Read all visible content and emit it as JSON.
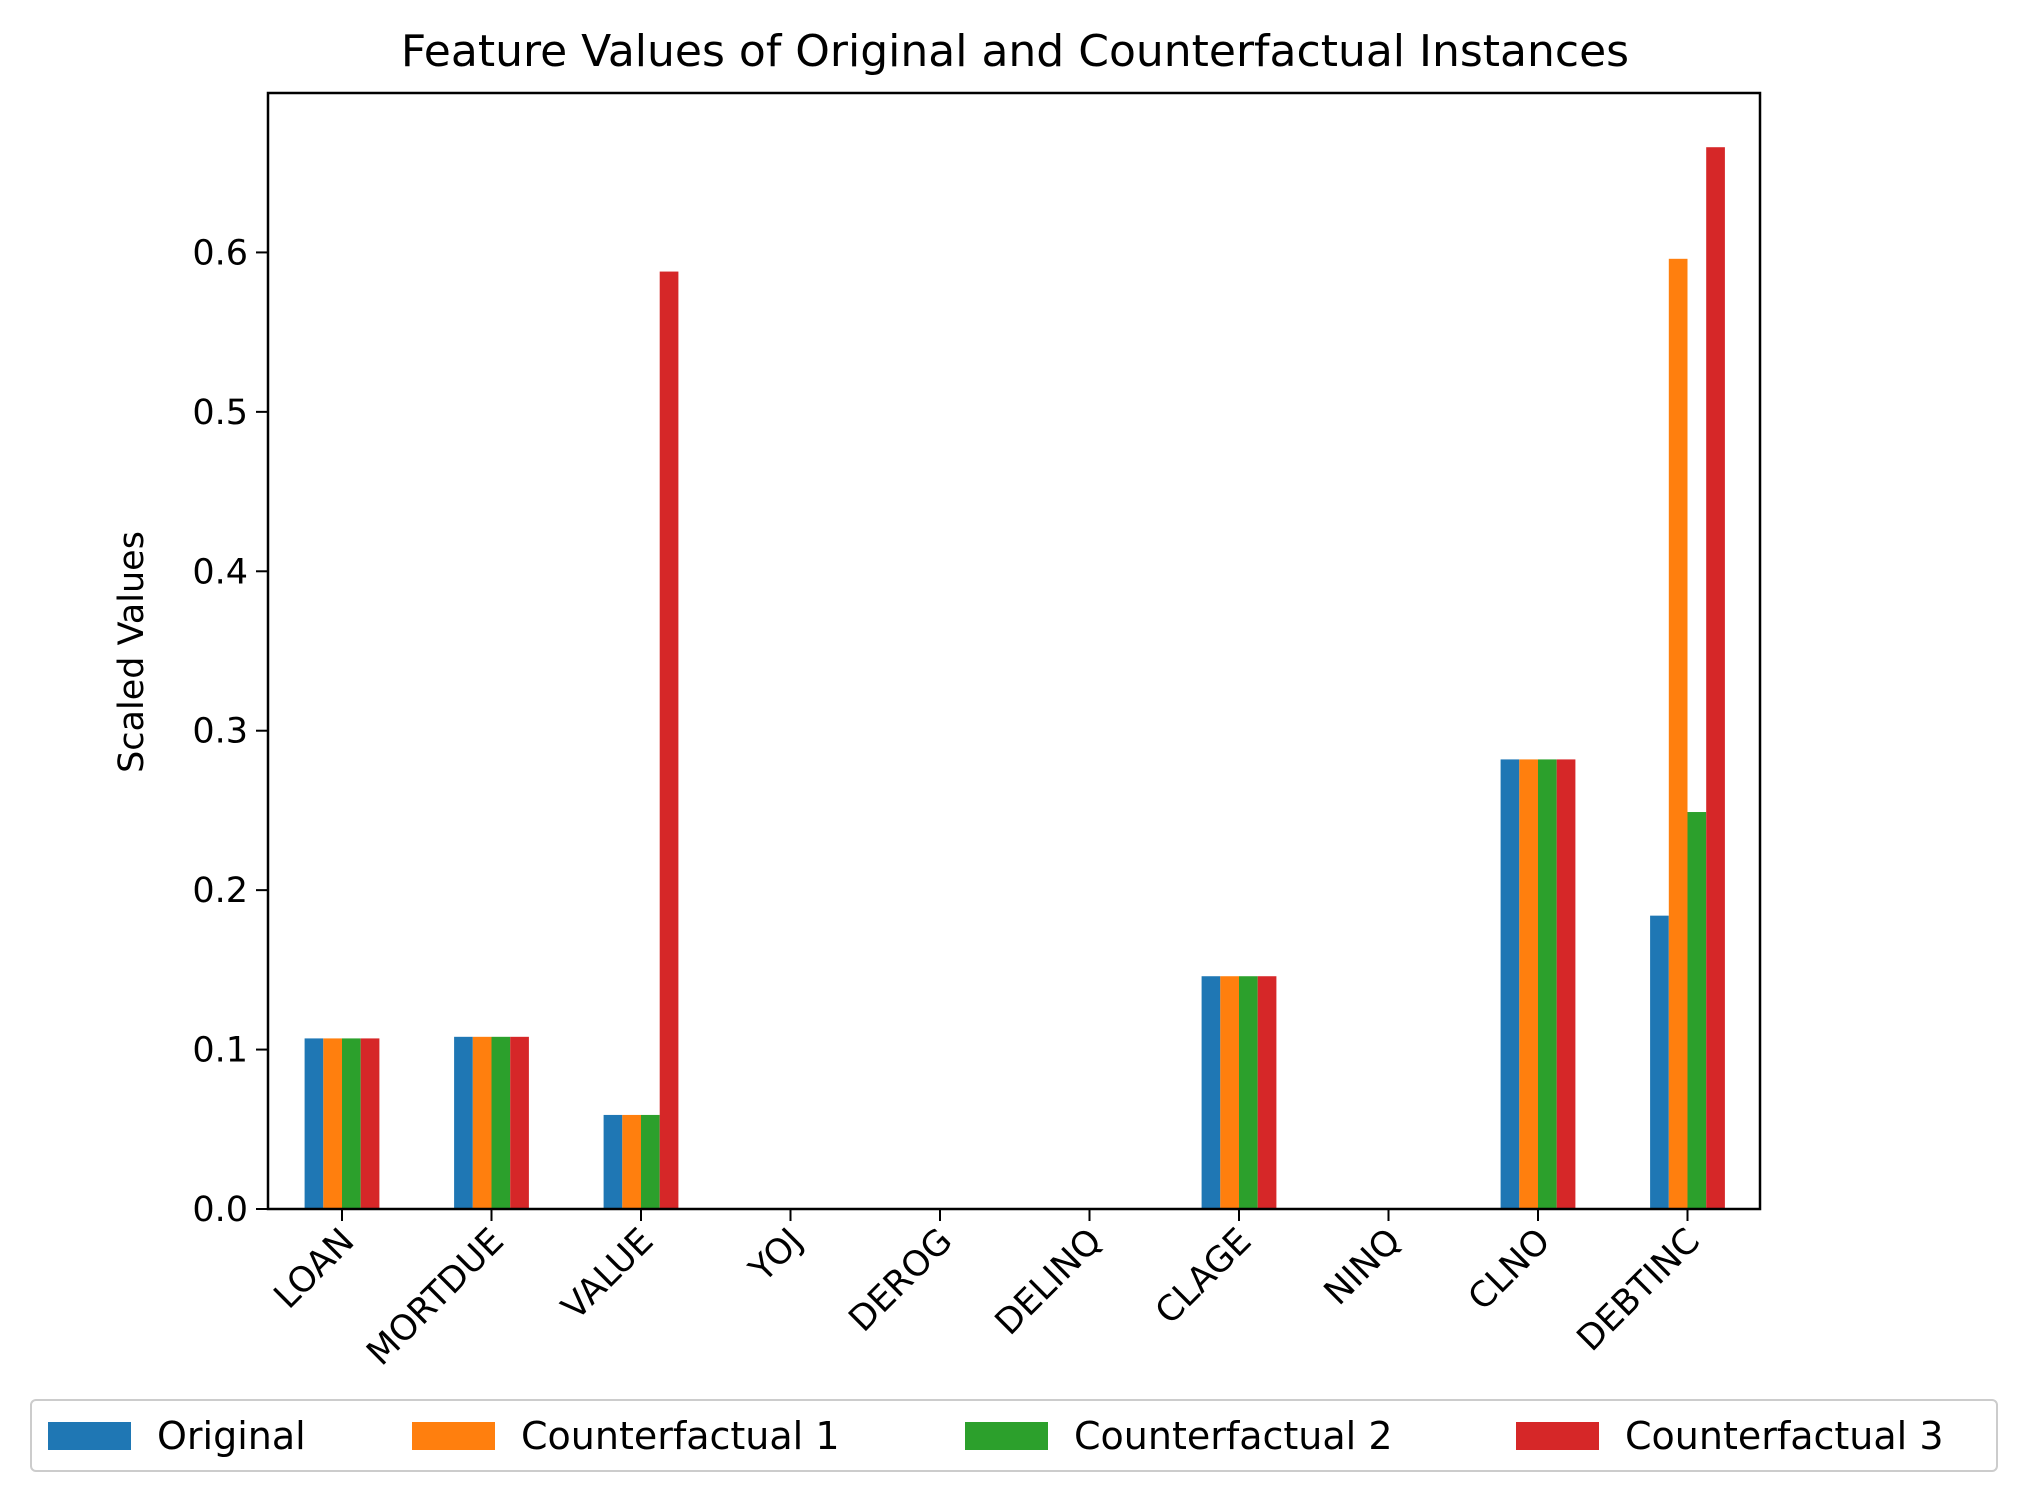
{
  "chart_data": {
    "type": "bar",
    "title": "Feature Values of Original and Counterfactual Instances",
    "xlabel": "",
    "ylabel": "Scaled Values",
    "ylim": [
      0,
      0.7
    ],
    "yticks": [
      "0.0",
      "0.1",
      "0.2",
      "0.3",
      "0.4",
      "0.5",
      "0.6"
    ],
    "grid": false,
    "legend_position": "bottom",
    "categories": [
      "LOAN",
      "MORTDUE",
      "VALUE",
      "YOJ",
      "DEROG",
      "DELINQ",
      "CLAGE",
      "NINQ",
      "CLNO",
      "DEBTINC"
    ],
    "series": [
      {
        "name": "Original",
        "color": "#1f77b4",
        "values": [
          0.107,
          0.108,
          0.059,
          0,
          0,
          0,
          0.146,
          0,
          0.282,
          0.184
        ]
      },
      {
        "name": "Counterfactual 1",
        "color": "#ff7f0e",
        "values": [
          0.107,
          0.108,
          0.059,
          0,
          0,
          0,
          0.146,
          0,
          0.282,
          0.596
        ]
      },
      {
        "name": "Counterfactual 2",
        "color": "#2ca02c",
        "values": [
          0.107,
          0.108,
          0.059,
          0,
          0,
          0,
          0.146,
          0,
          0.282,
          0.249
        ]
      },
      {
        "name": "Counterfactual 3",
        "color": "#d62728",
        "values": [
          0.107,
          0.108,
          0.588,
          0,
          0,
          0,
          0.146,
          0,
          0.282,
          0.666
        ]
      }
    ]
  }
}
